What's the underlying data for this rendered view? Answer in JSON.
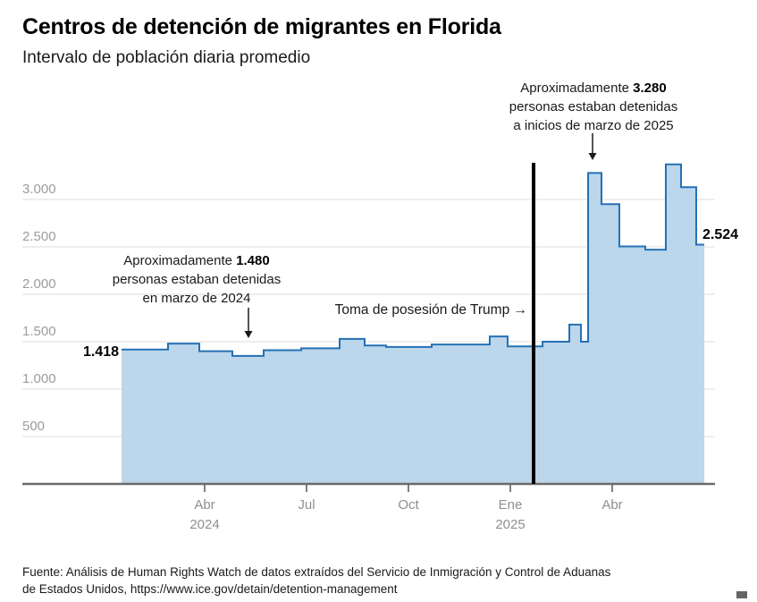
{
  "title": "Centros de detención de migrantes en Florida",
  "subtitle": "Intervalo de población diaria promedio",
  "annotations": {
    "march2024": {
      "prefix": "Aproximadamente ",
      "value": "1.480",
      "line2": "personas estaban detenidas",
      "line3": "en marzo de 2024"
    },
    "march2025": {
      "prefix": "Aproximadamente ",
      "value": "3.280",
      "line2": "personas estaban detenidas",
      "line3": "a inicios de marzo de 2025"
    },
    "trump_label": "Toma de posesión de Trump →",
    "start_value": "1.418",
    "end_value": "2.524"
  },
  "source": {
    "line1": "Fuente: Análisis de Human Rights Watch de datos extraídos del Servicio de Inmigración y Control de Aduanas",
    "line2": "de Estados Unidos, https://www.ice.gov/detain/detention-management"
  },
  "colors": {
    "area_fill": "#BCD6EB",
    "line": "#2570B4",
    "grid": "#DCDCDC",
    "axis": "#6b6b6b",
    "tick": "#555555",
    "tick_label": "#979797",
    "event_line": "#000000",
    "text": "#1a1a1a"
  },
  "chart_data": {
    "type": "area",
    "title": "Centros de detención de migrantes en Florida",
    "subtitle": "Intervalo de población diaria promedio",
    "xlabel": "",
    "ylabel": "",
    "ylim": [
      0,
      3400
    ],
    "grid": true,
    "legend": false,
    "yticks": [
      500,
      1000,
      1500,
      2000,
      2500,
      3000
    ],
    "ytick_labels": [
      "500",
      "1.000",
      "1.500",
      "2.000",
      "2.500",
      "3.000"
    ],
    "xticks": [
      {
        "f": 0.2632,
        "label": "Abr",
        "year": "2024"
      },
      {
        "f": 0.4103,
        "label": "Jul"
      },
      {
        "f": 0.5574,
        "label": "Oct"
      },
      {
        "f": 0.7045,
        "label": "Ene",
        "year": "2025"
      },
      {
        "f": 0.8516,
        "label": "Abr"
      }
    ],
    "steps": [
      [
        0.1432,
        1418
      ],
      [
        0.2103,
        1480
      ],
      [
        0.2555,
        1400
      ],
      [
        0.3032,
        1350
      ],
      [
        0.3484,
        1410
      ],
      [
        0.4026,
        1430
      ],
      [
        0.4581,
        1530
      ],
      [
        0.4942,
        1460
      ],
      [
        0.5252,
        1445
      ],
      [
        0.591,
        1470
      ],
      [
        0.6748,
        1555
      ],
      [
        0.7006,
        1450
      ],
      [
        0.751,
        1500
      ],
      [
        0.7897,
        1680
      ],
      [
        0.8065,
        1500
      ],
      [
        0.8168,
        3280
      ],
      [
        0.8361,
        2950
      ],
      [
        0.8619,
        2505
      ],
      [
        0.8994,
        2470
      ],
      [
        0.929,
        3370
      ],
      [
        0.951,
        3130
      ],
      [
        0.9729,
        2524
      ]
    ],
    "end_f": 0.9845,
    "event_line": {
      "f": 0.7381,
      "label": "Toma de posesión de Trump"
    },
    "callouts": {
      "start": {
        "value": 1418,
        "label": "1.418"
      },
      "march_2024": {
        "value": 1480,
        "label": "1.480",
        "note": "en marzo de 2024"
      },
      "march_2025": {
        "value": 3280,
        "label": "3.280",
        "note": "a inicios de marzo de 2025"
      },
      "end": {
        "value": 2524,
        "label": "2.524"
      }
    }
  }
}
